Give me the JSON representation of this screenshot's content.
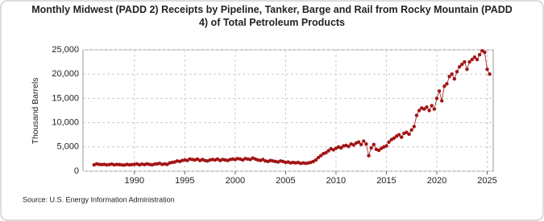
{
  "chart_data": {
    "type": "scatter",
    "title": "Monthly Midwest (PADD 2) Receipts by Pipeline, Tanker, Barge and Rail from Rocky Mountain (PADD 4) of Total Petroleum Products",
    "y_label": "Thousand Barrels",
    "source": "Source: U.S. Energy Information Administration",
    "xlim": [
      1984.9,
      2025.6
    ],
    "ylim": [
      0,
      25000
    ],
    "xticks": [
      1990,
      1995,
      2000,
      2005,
      2010,
      2015,
      2020,
      2025
    ],
    "yticks": [
      0,
      {
        "value": 5000,
        "label": "5,000"
      },
      {
        "value": 10000,
        "label": "10,000"
      },
      {
        "value": 15000,
        "label": "15,000"
      },
      {
        "value": 20000,
        "label": "20,000"
      },
      {
        "value": 25000,
        "label": "25,000"
      }
    ],
    "grid": true,
    "series": [
      {
        "name": "Receipts",
        "color": "#a31515",
        "x": [
          1986,
          1986.25,
          1986.5,
          1986.75,
          1987,
          1987.25,
          1987.5,
          1987.75,
          1988,
          1988.25,
          1988.5,
          1988.75,
          1989,
          1989.25,
          1989.5,
          1989.75,
          1990,
          1990.25,
          1990.5,
          1990.75,
          1991,
          1991.25,
          1991.5,
          1991.75,
          1992,
          1992.25,
          1992.5,
          1992.75,
          1993,
          1993.25,
          1993.5,
          1993.75,
          1994,
          1994.25,
          1994.5,
          1994.75,
          1995,
          1995.25,
          1995.5,
          1995.75,
          1996,
          1996.25,
          1996.5,
          1996.75,
          1997,
          1997.25,
          1997.5,
          1997.75,
          1998,
          1998.25,
          1998.5,
          1998.75,
          1999,
          1999.25,
          1999.5,
          1999.75,
          2000,
          2000.25,
          2000.5,
          2000.75,
          2001,
          2001.25,
          2001.5,
          2001.75,
          2002,
          2002.25,
          2002.5,
          2002.75,
          2003,
          2003.25,
          2003.5,
          2003.75,
          2004,
          2004.25,
          2004.5,
          2004.75,
          2005,
          2005.25,
          2005.5,
          2005.75,
          2006,
          2006.25,
          2006.5,
          2006.75,
          2007,
          2007.25,
          2007.5,
          2007.75,
          2008,
          2008.25,
          2008.5,
          2008.75,
          2009,
          2009.25,
          2009.5,
          2009.75,
          2010,
          2010.25,
          2010.5,
          2010.75,
          2011,
          2011.25,
          2011.5,
          2011.75,
          2012,
          2012.25,
          2012.5,
          2012.75,
          2013,
          2013.25,
          2013.5,
          2013.75,
          2014,
          2014.25,
          2014.5,
          2014.75,
          2015,
          2015.25,
          2015.5,
          2015.75,
          2016,
          2016.25,
          2016.5,
          2016.75,
          2017,
          2017.25,
          2017.5,
          2017.75,
          2018,
          2018.25,
          2018.5,
          2018.75,
          2019,
          2019.25,
          2019.5,
          2019.75,
          2020,
          2020.25,
          2020.5,
          2020.75,
          2021,
          2021.25,
          2021.5,
          2021.75,
          2022,
          2022.25,
          2022.5,
          2022.75,
          2023,
          2023.25,
          2023.5,
          2023.75,
          2024,
          2024.25,
          2024.5,
          2024.75,
          2025,
          2025.25
        ],
        "values": [
          1300,
          1500,
          1400,
          1350,
          1400,
          1300,
          1350,
          1450,
          1300,
          1400,
          1350,
          1300,
          1250,
          1400,
          1300,
          1350,
          1400,
          1500,
          1300,
          1450,
          1350,
          1500,
          1400,
          1300,
          1450,
          1500,
          1600,
          1400,
          1500,
          1400,
          1700,
          1800,
          1900,
          2100,
          2000,
          2200,
          2300,
          2200,
          2500,
          2400,
          2300,
          2500,
          2200,
          2400,
          2200,
          2100,
          2300,
          2400,
          2300,
          2500,
          2200,
          2400,
          2300,
          2200,
          2400,
          2500,
          2400,
          2600,
          2500,
          2300,
          2600,
          2500,
          2400,
          2700,
          2500,
          2300,
          2200,
          2400,
          2100,
          2000,
          2200,
          2100,
          2000,
          1900,
          2100,
          2000,
          1800,
          1900,
          1700,
          1800,
          1700,
          1800,
          1600,
          1700,
          1600,
          1700,
          1800,
          2000,
          2300,
          2800,
          3200,
          3600,
          3800,
          4200,
          4600,
          4400,
          4700,
          5000,
          4800,
          5200,
          5300,
          5100,
          5600,
          5400,
          5800,
          6000,
          5500,
          6200,
          5600,
          3200,
          4800,
          5500,
          4500,
          4300,
          4700,
          5000,
          5200,
          6000,
          6500,
          6800,
          7200,
          7500,
          7000,
          7800,
          8000,
          7600,
          8500,
          9200,
          11500,
          12500,
          13000,
          12800,
          13200,
          12500,
          13500,
          12800,
          15000,
          16500,
          14500,
          17500,
          18000,
          19500,
          20000,
          19000,
          20500,
          21500,
          22000,
          22500,
          21000,
          22500,
          23000,
          23500,
          23000,
          24000,
          24800,
          24500,
          21000,
          20000
        ]
      }
    ]
  }
}
